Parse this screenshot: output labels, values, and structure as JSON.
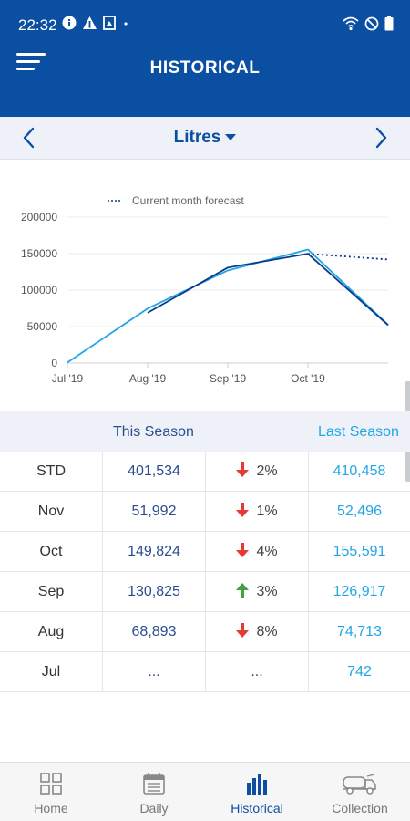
{
  "status": {
    "time": "22:32"
  },
  "header": {
    "title": "HISTORICAL"
  },
  "selector": {
    "unit": "Litres"
  },
  "chart_data": {
    "type": "line",
    "legend": [
      "Current month forecast"
    ],
    "x_ticks": [
      "Jul '19",
      "Aug '19",
      "Sep '19",
      "Oct '19"
    ],
    "y_ticks": [
      "0",
      "50000",
      "100000",
      "150000",
      "200000"
    ],
    "ylim": [
      0,
      200000
    ],
    "series": [
      {
        "values": [
          742,
          74713,
          126917,
          155591,
          52496
        ],
        "color": "#23a6e6"
      },
      {
        "values": [
          null,
          68893,
          130825,
          149824,
          51992
        ],
        "color": "#0a3a8a"
      },
      {
        "forecast": true,
        "values": [
          null,
          null,
          null,
          149824,
          142000
        ],
        "color": "#0a3a8a"
      }
    ]
  },
  "table": {
    "this_season_label": "This Season",
    "last_season_label": "Last Season",
    "rows": [
      {
        "label": "STD",
        "this": "401,534",
        "dir": "down",
        "pct": "2%",
        "last": "410,458"
      },
      {
        "label": "Nov",
        "this": "51,992",
        "dir": "down",
        "pct": "1%",
        "last": "52,496"
      },
      {
        "label": "Oct",
        "this": "149,824",
        "dir": "down",
        "pct": "4%",
        "last": "155,591"
      },
      {
        "label": "Sep",
        "this": "130,825",
        "dir": "up",
        "pct": "3%",
        "last": "126,917"
      },
      {
        "label": "Aug",
        "this": "68,893",
        "dir": "down",
        "pct": "8%",
        "last": "74,713"
      },
      {
        "label": "Jul",
        "this": "...",
        "dir": "none",
        "pct": "...",
        "last": "742"
      }
    ]
  },
  "nav": {
    "items": [
      {
        "label": "Home",
        "icon": "grid-icon"
      },
      {
        "label": "Daily",
        "icon": "calendar-icon"
      },
      {
        "label": "Historical",
        "icon": "bar-chart-icon",
        "active": true
      },
      {
        "label": "Collection",
        "icon": "truck-icon"
      }
    ]
  },
  "colors": {
    "brand": "#0a4fa1",
    "last_season": "#23a6e6",
    "down": "#e53935",
    "up": "#43a047"
  }
}
